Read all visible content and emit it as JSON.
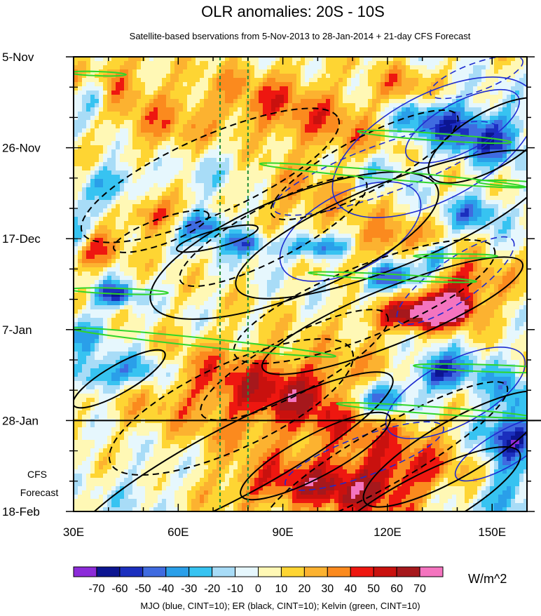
{
  "chart_data": {
    "type": "heatmap",
    "title": "OLR anomalies: 20S - 10S",
    "subtitle": "Satellite-based bservations from 5-Nov-2013 to 28-Jan-2014 + 21-day CFS Forecast",
    "xlabel": "",
    "ylabel": "",
    "x_ticks": [
      {
        "value": 30,
        "label": "30E"
      },
      {
        "value": 60,
        "label": "60E"
      },
      {
        "value": 90,
        "label": "90E"
      },
      {
        "value": 120,
        "label": "120E"
      },
      {
        "value": 150,
        "label": "150E"
      }
    ],
    "xlim": [
      30,
      160
    ],
    "y_ticks": [
      {
        "value": "2013-11-05",
        "label": "5-Nov"
      },
      {
        "value": "2013-11-26",
        "label": "26-Nov"
      },
      {
        "value": "2013-12-17",
        "label": "17-Dec"
      },
      {
        "value": "2014-01-07",
        "label": "7-Jan"
      },
      {
        "value": "2014-01-28",
        "label": "28-Jan"
      },
      {
        "value": "2014-02-18",
        "label": "18-Feb"
      }
    ],
    "ylim": [
      "2013-11-05",
      "2014-02-18"
    ],
    "observation_end": "2014-01-28",
    "forecast_label_line1": "CFS",
    "forecast_label_line2": "Forecast",
    "reference_lines_lon": [
      72,
      80
    ],
    "colorbar": {
      "levels": [
        -70,
        -60,
        -50,
        -40,
        -30,
        -20,
        -10,
        0,
        10,
        20,
        30,
        40,
        50,
        60,
        70
      ],
      "labels": [
        "-70",
        "-60",
        "-50",
        "-40",
        "-30",
        "-20",
        "-10",
        "0",
        "10",
        "20",
        "30",
        "40",
        "50",
        "60",
        "70"
      ],
      "colors": [
        "#8c2bd9",
        "#0c1591",
        "#1b2fbe",
        "#3f6be0",
        "#2a9fe9",
        "#37c3f1",
        "#a8dcf7",
        "#e6f7fd",
        "#fff8b5",
        "#fed533",
        "#fcb230",
        "#fb8a1e",
        "#ee1710",
        "#c9110e",
        "#a6181c",
        "#f474bf"
      ],
      "units": "W/m^2"
    },
    "legend_text": "MJO (blue, CINT=10); ER (black, CINT=10); Kelvin (green, CINT=10)",
    "series": [
      {
        "name": "MJO",
        "color": "#1d2bd0"
      },
      {
        "name": "ER",
        "color": "#000000"
      },
      {
        "name": "Kelvin",
        "color": "#2fd62a"
      }
    ]
  }
}
